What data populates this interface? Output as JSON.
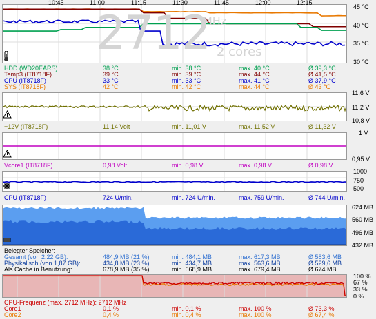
{
  "time_axis": [
    "10:45",
    "11:00",
    "11:15",
    "11:30",
    "11:45",
    "12:00",
    "12:15"
  ],
  "temp_panel": {
    "y_ticks": [
      "45 °C",
      "40 °C",
      "35 °C",
      "30 °C"
    ],
    "watermark_freq": "2712",
    "watermark_unit": "MHz",
    "watermark_cores": "2 cores",
    "rows": [
      {
        "name": "HDD (WD20EARS)",
        "value": "38 °C",
        "min": "min. 38 °C",
        "max": "max. 40 °C",
        "avg": "Ø 39,3 °C",
        "color": "#00a050"
      },
      {
        "name": "Temp3 (IT8718F)",
        "value": "39 °C",
        "min": "min. 39 °C",
        "max": "max. 44 °C",
        "avg": "Ø 41,5 °C",
        "color": "#800000"
      },
      {
        "name": "CPU (IT8718F)",
        "value": "33 °C",
        "min": "min. 33 °C",
        "max": "max. 41 °C",
        "avg": "Ø 37,9 °C",
        "color": "#0000cc"
      },
      {
        "name": "SYS (IT8718F)",
        "value": "42 °C",
        "min": "min. 42 °C",
        "max": "max. 44 °C",
        "avg": "Ø 43 °C",
        "color": "#e87800"
      }
    ]
  },
  "v12_panel": {
    "y_ticks": [
      "11,6 V",
      "11,2 V",
      "10,8 V"
    ],
    "row": {
      "name": "+12V (IT8718F)",
      "value": "11,14 Volt",
      "min": "min. 11,01 V",
      "max": "max. 11,52 V",
      "avg": "Ø 11,32 V",
      "color": "#707000"
    }
  },
  "vcore_panel": {
    "y_ticks": [
      "1 V",
      "0,95 V"
    ],
    "row": {
      "name": "Vcore1 (IT8718F)",
      "value": "0,98 Volt",
      "min": "min. 0,98 V",
      "max": "max. 0,98 V",
      "avg": "Ø 0,98 V",
      "color": "#c000c0"
    }
  },
  "fan_panel": {
    "y_ticks": [
      "1000",
      "750",
      "500"
    ],
    "row": {
      "name": "CPU (IT8718F)",
      "value": "724 U/min.",
      "min": "min. 724 U/min.",
      "max": "max. 759 U/min.",
      "avg": "Ø 744 U/min.",
      "color": "#0000cc"
    }
  },
  "mem_panel": {
    "y_ticks": [
      "624 MB",
      "560 MB",
      "496 MB",
      "432 MB"
    ],
    "header": "Belegter Speicher:",
    "rows": [
      {
        "name": "Gesamt (von 2,22 GB):",
        "value": "484,9 MB (21 %)",
        "min": "min. 484,1 MB",
        "max": "max. 617,3 MB",
        "avg": "Ø 583,6 MB",
        "color": "#3070d0"
      },
      {
        "name": "Physikalisch (von 1,87 GB):",
        "value": "434,8 MB (23 %)",
        "min": "min. 434,7 MB",
        "max": "max. 563,6 MB",
        "avg": "Ø 529,6 MB",
        "color": "#1040a0"
      },
      {
        "name": "Als Cache in Benutzung:",
        "value": "678,9 MB (35 %)",
        "min": "min. 668,9 MB",
        "max": "max. 679,4 MB",
        "avg": "Ø 674 MB",
        "color": "#000000"
      }
    ]
  },
  "cpu_panel": {
    "y_ticks": [
      "100 %",
      "67 %",
      "33 %",
      "0 %"
    ],
    "header": "CPU-Frequenz (max. 2712 MHz): 2712 MHz",
    "rows": [
      {
        "name": "Core1",
        "value": "0,1 %",
        "min": "min. 0,1 %",
        "max": "max. 100 %",
        "avg": "Ø 73,3 %",
        "color": "#cc0000"
      },
      {
        "name": "Core2",
        "value": "0,4 %",
        "min": "min. 0,4 %",
        "max": "max. 100 %",
        "avg": "Ø 67,4 %",
        "color": "#e87800"
      }
    ]
  }
}
